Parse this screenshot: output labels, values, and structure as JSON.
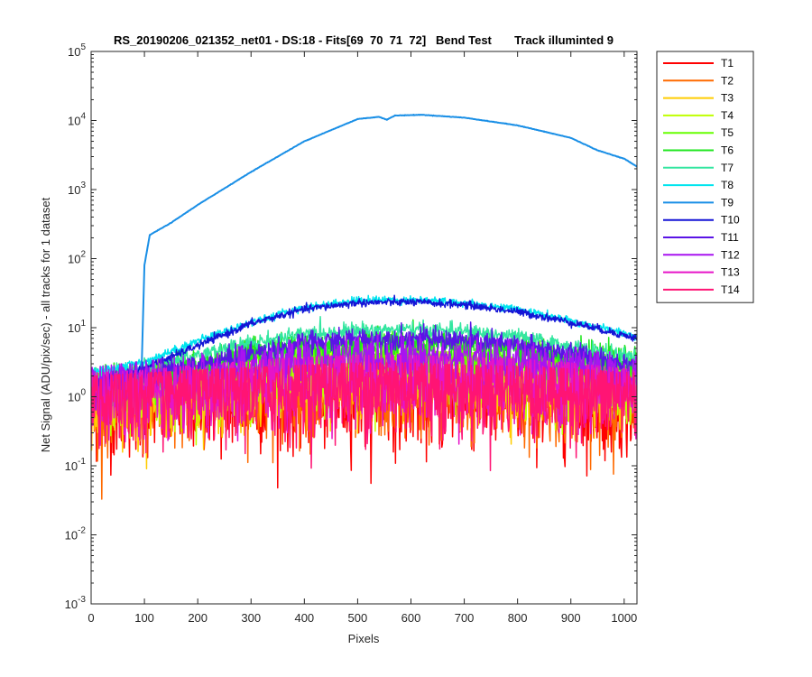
{
  "chart_data": {
    "type": "line",
    "title": "RS_20190206_021352_net01 - DS:18 - Fits[69  70  71  72]   Bend Test       Track illuminted 9",
    "xlabel": "Pixels",
    "ylabel": "Net Signal (ADU/pix/sec) - all tracks for 1 dataset",
    "xlim": [
      0,
      1024
    ],
    "ylim": [
      0.001,
      100000
    ],
    "yscale": "log",
    "grid": false,
    "legend_position": "outside-right-top",
    "x_ticks": [
      0,
      100,
      200,
      300,
      400,
      500,
      600,
      700,
      800,
      900,
      1000
    ],
    "x_tick_labels": [
      "0",
      "100",
      "200",
      "300",
      "400",
      "500",
      "600",
      "700",
      "800",
      "900",
      "1000"
    ],
    "y_ticks": [
      0.001,
      0.01,
      0.1,
      1,
      10,
      100,
      1000,
      10000,
      100000
    ],
    "y_tick_labels": [
      {
        "base": "10",
        "exp": "-3"
      },
      {
        "base": "10",
        "exp": "-2"
      },
      {
        "base": "10",
        "exp": "-1"
      },
      {
        "base": "10",
        "exp": "0"
      },
      {
        "base": "10",
        "exp": "1"
      },
      {
        "base": "10",
        "exp": "2"
      },
      {
        "base": "10",
        "exp": "3"
      },
      {
        "base": "10",
        "exp": "4"
      },
      {
        "base": "10",
        "exp": "5"
      }
    ],
    "series": [
      {
        "name": "T1",
        "color": "#ff0000",
        "x": [
          0,
          100,
          200,
          300,
          400,
          500,
          600,
          700,
          800,
          900,
          1024
        ],
        "y": [
          0.7,
          0.8,
          0.9,
          1.0,
          1.05,
          1.1,
          1.1,
          1.05,
          1.0,
          0.9,
          0.8
        ],
        "noise": 0.55
      },
      {
        "name": "T2",
        "color": "#ff6a00",
        "x": [
          0,
          100,
          200,
          300,
          400,
          500,
          600,
          700,
          800,
          900,
          1024
        ],
        "y": [
          0.8,
          0.9,
          1.0,
          1.1,
          1.2,
          1.2,
          1.2,
          1.15,
          1.1,
          1.0,
          0.9
        ],
        "noise": 0.5
      },
      {
        "name": "T3",
        "color": "#ffcc00",
        "x": [
          0,
          100,
          200,
          300,
          400,
          500,
          600,
          700,
          800,
          900,
          1024
        ],
        "y": [
          0.9,
          1.0,
          1.1,
          1.3,
          1.5,
          1.6,
          1.6,
          1.5,
          1.4,
          1.2,
          1.0
        ],
        "noise": 0.4
      },
      {
        "name": "T4",
        "color": "#bfff00",
        "x": [
          0,
          100,
          200,
          300,
          400,
          500,
          600,
          700,
          800,
          900,
          1024
        ],
        "y": [
          1.0,
          1.1,
          1.3,
          1.6,
          1.9,
          2.1,
          2.1,
          2.0,
          1.8,
          1.5,
          1.2
        ],
        "noise": 0.35
      },
      {
        "name": "T5",
        "color": "#66ff00",
        "x": [
          0,
          100,
          200,
          300,
          400,
          500,
          600,
          700,
          800,
          900,
          1024
        ],
        "y": [
          1.2,
          1.5,
          2.0,
          2.8,
          3.6,
          4.0,
          4.0,
          3.7,
          3.2,
          2.6,
          2.0
        ],
        "noise": 0.22
      },
      {
        "name": "T6",
        "color": "#1fe61f",
        "x": [
          0,
          100,
          200,
          300,
          400,
          500,
          600,
          700,
          800,
          900,
          1024
        ],
        "y": [
          1.5,
          2.0,
          2.9,
          4.3,
          5.3,
          5.8,
          5.9,
          5.6,
          4.9,
          3.9,
          3.0
        ],
        "noise": 0.15
      },
      {
        "name": "T7",
        "color": "#33e6a0",
        "x": [
          0,
          100,
          200,
          300,
          400,
          500,
          600,
          700,
          800,
          900,
          1024
        ],
        "y": [
          2.0,
          2.7,
          4.0,
          6.0,
          8.0,
          9.2,
          9.4,
          8.8,
          7.3,
          5.3,
          3.6
        ],
        "noise": 0.08
      },
      {
        "name": "T8",
        "color": "#00e5ee",
        "x": [
          0,
          100,
          200,
          300,
          400,
          500,
          600,
          700,
          800,
          900,
          1024
        ],
        "y": [
          2.2,
          3.2,
          6.5,
          12.0,
          19.5,
          25.0,
          25.5,
          23.0,
          18.5,
          12.5,
          7.5
        ],
        "noise": 0.04
      },
      {
        "name": "T9",
        "color": "#1a8fe6",
        "x": [
          0,
          80,
          95,
          100,
          110,
          150,
          200,
          300,
          400,
          500,
          540,
          555,
          570,
          620,
          700,
          800,
          900,
          950,
          1000,
          1024
        ],
        "y": [
          1.5,
          2.0,
          3.0,
          80,
          220,
          330,
          600,
          1800,
          5000,
          10500,
          11300,
          10300,
          11800,
          12100,
          11000,
          8500,
          5600,
          3700,
          2800,
          2150
        ],
        "noise": 0.0
      },
      {
        "name": "T10",
        "color": "#1414d6",
        "x": [
          0,
          100,
          200,
          300,
          400,
          500,
          600,
          700,
          800,
          900,
          1024
        ],
        "y": [
          1.6,
          2.6,
          5.5,
          11.5,
          18.5,
          23.0,
          23.5,
          21.5,
          17.0,
          12.0,
          7.0
        ],
        "noise": 0.04
      },
      {
        "name": "T11",
        "color": "#5a14e6",
        "x": [
          0,
          100,
          200,
          300,
          400,
          500,
          600,
          700,
          800,
          900,
          1024
        ],
        "y": [
          1.5,
          2.0,
          2.8,
          4.2,
          5.8,
          6.8,
          7.0,
          6.5,
          5.5,
          4.2,
          3.0
        ],
        "noise": 0.12
      },
      {
        "name": "T12",
        "color": "#a814f0",
        "x": [
          0,
          100,
          200,
          300,
          400,
          500,
          600,
          700,
          800,
          900,
          1024
        ],
        "y": [
          1.2,
          1.5,
          1.9,
          2.6,
          3.2,
          3.6,
          3.6,
          3.4,
          3.0,
          2.4,
          1.8
        ],
        "noise": 0.25
      },
      {
        "name": "T13",
        "color": "#e614c8",
        "x": [
          0,
          100,
          200,
          300,
          400,
          500,
          600,
          700,
          800,
          900,
          1024
        ],
        "y": [
          1.0,
          1.1,
          1.3,
          1.5,
          1.7,
          1.8,
          1.8,
          1.7,
          1.6,
          1.4,
          1.1
        ],
        "noise": 0.45
      },
      {
        "name": "T14",
        "color": "#ff1474",
        "x": [
          0,
          100,
          200,
          300,
          400,
          500,
          600,
          700,
          800,
          900,
          1024
        ],
        "y": [
          0.9,
          1.0,
          1.1,
          1.2,
          1.3,
          1.4,
          1.4,
          1.3,
          1.25,
          1.15,
          1.0
        ],
        "noise": 0.5
      }
    ]
  }
}
